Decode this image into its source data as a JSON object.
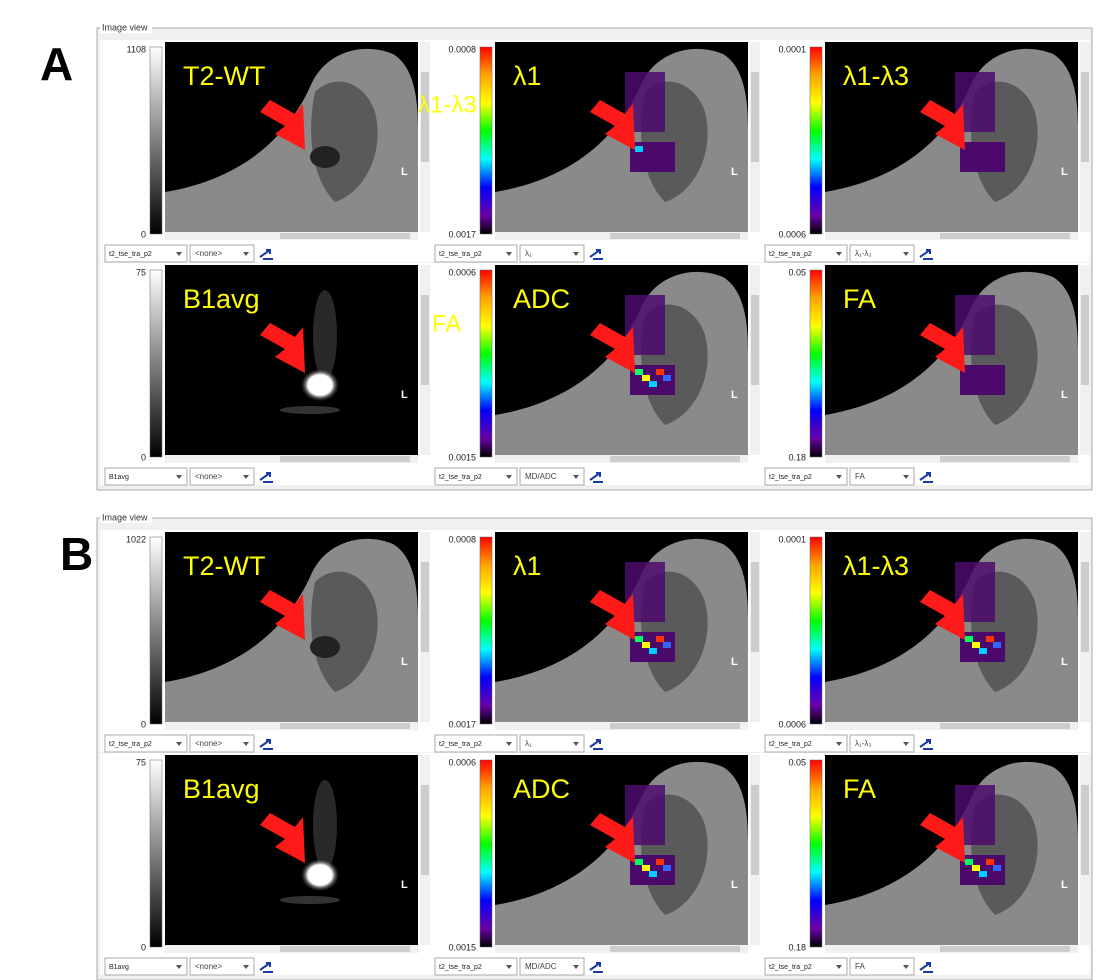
{
  "panels": [
    {
      "label": "A",
      "title": "Image view",
      "cells": [
        {
          "colorbar_max": "1108",
          "colorbar_min": "0",
          "overlay_label": "T2-WT",
          "side_marker": "L",
          "series": "t2_tse_tra_p2",
          "map": "<none>"
        },
        {
          "colorbar_max": "0.0008",
          "colorbar_min": "0.0017",
          "overlay_label": "λ1",
          "side_marker": "L",
          "series": "t2_tse_tra_p2",
          "map": "λ₁"
        },
        {
          "colorbar_max": "0.0001",
          "colorbar_min": "0.0006",
          "overlay_label": "λ1-λ3",
          "side_marker": "L",
          "series": "t2_tse_tra_p2",
          "map": "λ₁-λ₃"
        },
        {
          "colorbar_max": "75",
          "colorbar_min": "0",
          "overlay_label": "B1avg",
          "side_marker": "L",
          "series": "B1avg",
          "map": "<none>"
        },
        {
          "colorbar_max": "0.0006",
          "colorbar_min": "0.0015",
          "overlay_label": "ADC",
          "side_marker": "L",
          "series": "t2_tse_tra_p2",
          "map": "MD/ADC"
        },
        {
          "colorbar_max": "0.05",
          "colorbar_min": "0.18",
          "overlay_label": "FA",
          "side_marker": "L",
          "series": "t2_tse_tra_p2",
          "map": "FA"
        }
      ],
      "stray_labels": [
        "λ1-λ3",
        "FA"
      ]
    },
    {
      "label": "B",
      "title": "Image view",
      "cells": [
        {
          "colorbar_max": "1022",
          "colorbar_min": "0",
          "overlay_label": "T2-WT",
          "side_marker": "L",
          "series": "t2_tse_tra_p2",
          "map": "<none>"
        },
        {
          "colorbar_max": "0.0008",
          "colorbar_min": "0.0017",
          "overlay_label": "λ1",
          "side_marker": "L",
          "series": "t2_tse_tra_p2",
          "map": "λ₁"
        },
        {
          "colorbar_max": "0.0001",
          "colorbar_min": "0.0006",
          "overlay_label": "λ1-λ3",
          "side_marker": "L",
          "series": "t2_tse_tra_p2",
          "map": "λ₁-λ₃"
        },
        {
          "colorbar_max": "75",
          "colorbar_min": "0",
          "overlay_label": "B1avg",
          "side_marker": "L",
          "series": "B1avg",
          "map": "<none>"
        },
        {
          "colorbar_max": "0.0006",
          "colorbar_min": "0.0015",
          "overlay_label": "ADC",
          "side_marker": "L",
          "series": "t2_tse_tra_p2",
          "map": "MD/ADC"
        },
        {
          "colorbar_max": "0.05",
          "colorbar_min": "0.18",
          "overlay_label": "FA",
          "side_marker": "L",
          "series": "t2_tse_tra_p2",
          "map": "FA"
        }
      ],
      "stray_labels": []
    }
  ]
}
